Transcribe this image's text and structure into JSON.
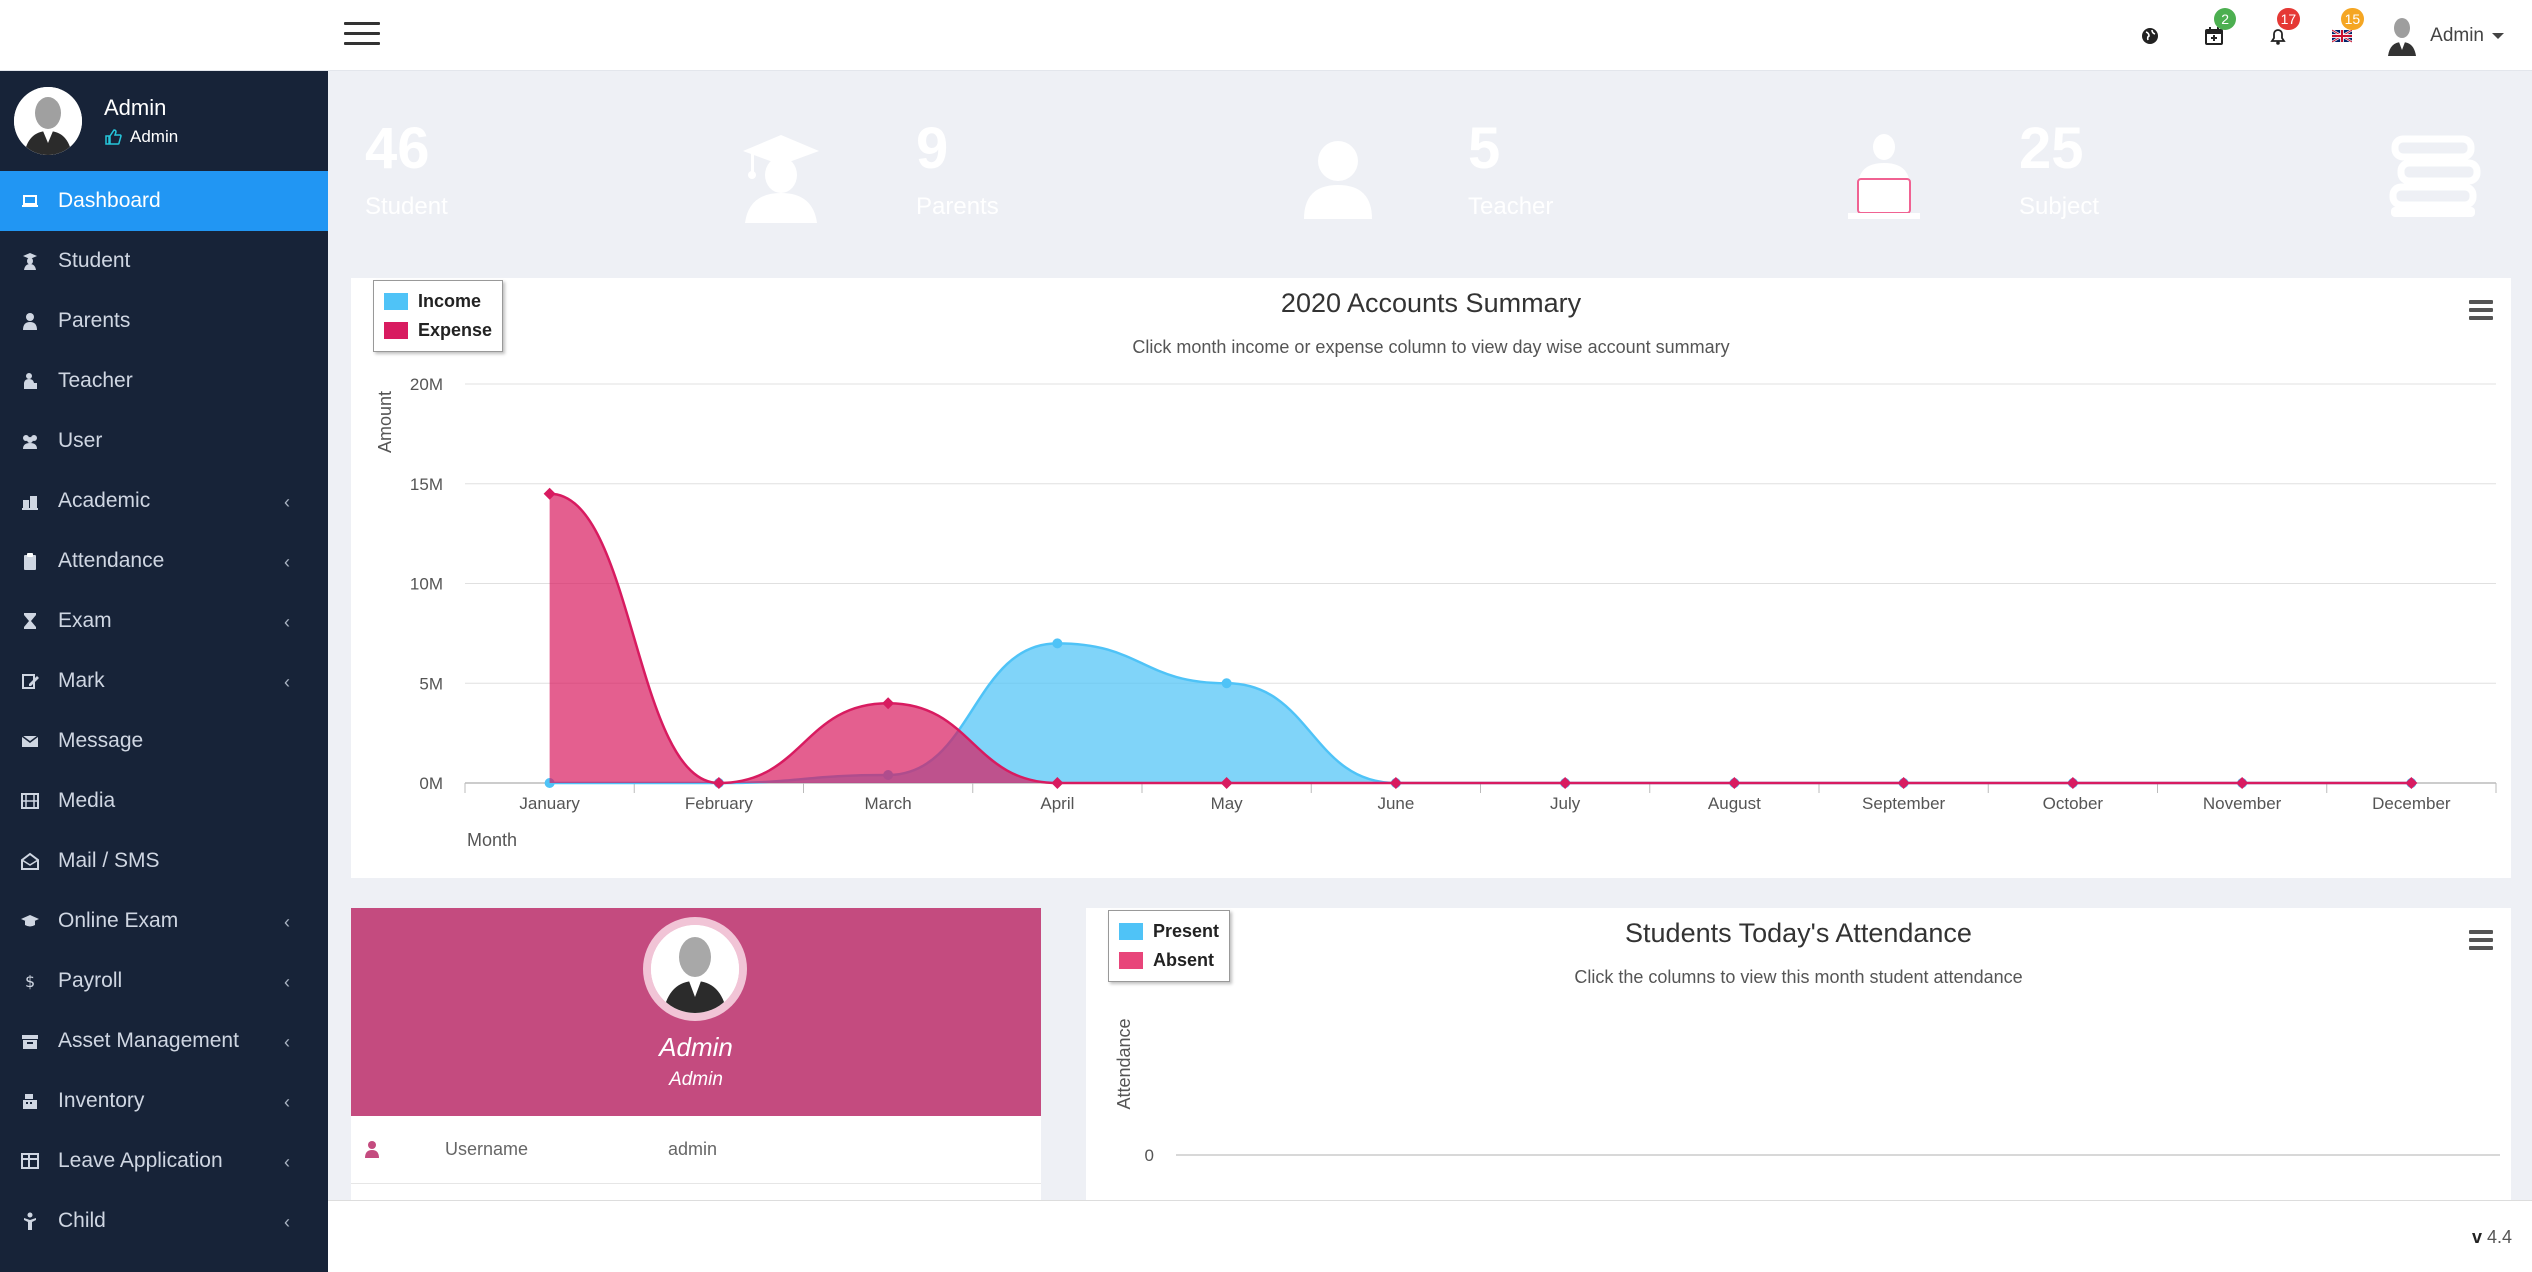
{
  "topbar": {
    "badges": {
      "calendar": "2",
      "notifications": "17",
      "language": "15"
    },
    "user_name": "Admin"
  },
  "sidebar": {
    "profile_name": "Admin",
    "profile_role": "Admin",
    "items": [
      {
        "label": "Dashboard",
        "icon": "laptop-icon",
        "active": true,
        "has_children": false
      },
      {
        "label": "Student",
        "icon": "student-icon",
        "has_children": false
      },
      {
        "label": "Parents",
        "icon": "user-icon",
        "has_children": false
      },
      {
        "label": "Teacher",
        "icon": "teacher-icon",
        "has_children": false
      },
      {
        "label": "User",
        "icon": "users-icon",
        "has_children": false
      },
      {
        "label": "Academic",
        "icon": "building-icon",
        "has_children": true
      },
      {
        "label": "Attendance",
        "icon": "clipboard-icon",
        "has_children": true
      },
      {
        "label": "Exam",
        "icon": "hourglass-icon",
        "has_children": true
      },
      {
        "label": "Mark",
        "icon": "edit-icon",
        "has_children": true
      },
      {
        "label": "Message",
        "icon": "envelope-icon",
        "has_children": false
      },
      {
        "label": "Media",
        "icon": "film-icon",
        "has_children": false
      },
      {
        "label": "Mail / SMS",
        "icon": "envelope-open-icon",
        "has_children": false
      },
      {
        "label": "Online Exam",
        "icon": "graduation-cap-icon",
        "has_children": true
      },
      {
        "label": "Payroll",
        "icon": "dollar-icon",
        "has_children": true
      },
      {
        "label": "Asset Management",
        "icon": "archive-icon",
        "has_children": true
      },
      {
        "label": "Inventory",
        "icon": "cash-register-icon",
        "has_children": true
      },
      {
        "label": "Leave Application",
        "icon": "table-icon",
        "has_children": true
      },
      {
        "label": "Child",
        "icon": "child-icon",
        "has_children": true
      }
    ]
  },
  "cards": [
    {
      "value": "46",
      "label": "Student",
      "color": "#ff8a65",
      "icon": "graduate-icon"
    },
    {
      "value": "9",
      "label": "Parents",
      "color": "#4db6ac",
      "icon": "user-icon"
    },
    {
      "value": "5",
      "label": "Teacher",
      "color": "#f06292",
      "icon": "teacher-laptop-icon"
    },
    {
      "value": "25",
      "label": "Subject",
      "color": "#9575cd",
      "icon": "books-icon"
    }
  ],
  "accounts_chart": {
    "title": "2020 Accounts Summary",
    "subtitle": "Click month income or expense column to view day wise account summary",
    "legend": [
      "Income",
      "Expense"
    ]
  },
  "chart_data": [
    {
      "type": "area",
      "title": "2020 Accounts Summary",
      "xlabel": "Month",
      "ylabel": "Amount",
      "categories": [
        "January",
        "February",
        "March",
        "April",
        "May",
        "June",
        "July",
        "August",
        "September",
        "October",
        "November",
        "December"
      ],
      "yticks": [
        "0M",
        "5M",
        "10M",
        "15M",
        "20M"
      ],
      "ylim": [
        0,
        20000000
      ],
      "grid": true,
      "legend_position": "top-left",
      "series": [
        {
          "name": "Income",
          "color": "#4fc3f7",
          "values": [
            0,
            0,
            400000,
            7000000,
            5000000,
            0,
            0,
            0,
            0,
            0,
            0,
            0
          ]
        },
        {
          "name": "Expense",
          "color": "#d81b60",
          "values": [
            14500000,
            0,
            4000000,
            0,
            0,
            0,
            0,
            0,
            0,
            0,
            0,
            0
          ]
        }
      ]
    },
    {
      "type": "bar",
      "title": "Students Today's Attendance",
      "xlabel": "",
      "ylabel": "Attendance",
      "categories": [],
      "yticks": [
        "0"
      ],
      "legend_position": "top-left",
      "series": [
        {
          "name": "Present",
          "color": "#4fc3f7",
          "values": []
        },
        {
          "name": "Absent",
          "color": "#e8457a",
          "values": []
        }
      ]
    }
  ],
  "attendance_chart": {
    "title": "Students Today's Attendance",
    "subtitle": "Click the columns to view this month student attendance",
    "legend": [
      "Present",
      "Absent"
    ]
  },
  "profile_card": {
    "name": "Admin",
    "role": "Admin",
    "rows": [
      {
        "label": "Username",
        "value": "admin"
      }
    ]
  },
  "footer": {
    "version_prefix": "v",
    "version": " 4.4"
  }
}
